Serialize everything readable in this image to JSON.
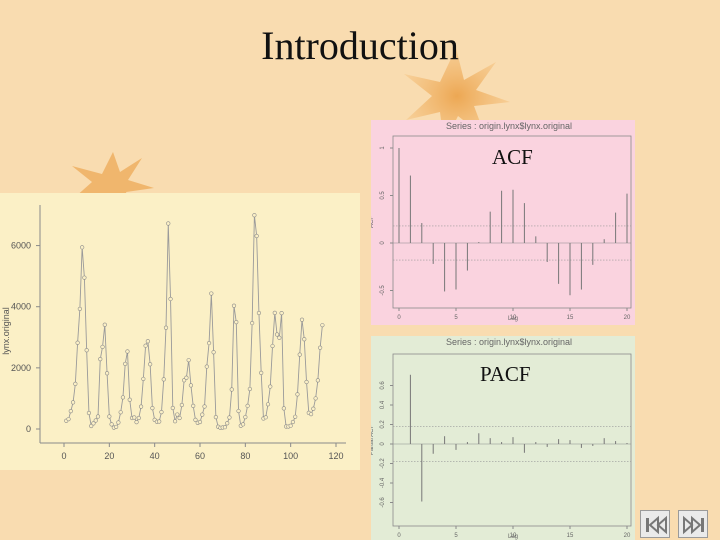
{
  "slide": {
    "title": "Introduction"
  },
  "labels": {
    "acf": "ACF",
    "pacf": "PACF"
  },
  "nav": {
    "prev_icon": "skip-back-icon",
    "next_icon": "skip-forward-icon"
  },
  "colors": {
    "background": "#f9dcb0",
    "ts_panel": "#fbf0c6",
    "acf_panel": "#fad3df",
    "pacf_panel": "#e3ecd6",
    "ink": "#8a8a8a"
  },
  "chart_data": [
    {
      "type": "line",
      "title": "",
      "xlabel": "",
      "ylabel": "lynx.original",
      "xlim": [
        0,
        120
      ],
      "ylim": [
        0,
        7000
      ],
      "xticks": [
        0,
        20,
        40,
        60,
        80,
        100,
        120
      ],
      "yticks": [
        0,
        2000,
        4000,
        6000
      ],
      "series": [
        {
          "values": [
            269,
            321,
            585,
            871,
            1475,
            2821,
            3928,
            5943,
            4950,
            2577,
            523,
            98,
            184,
            279,
            409,
            2285,
            2685,
            3409,
            1824,
            409,
            151,
            45,
            68,
            213,
            546,
            1033,
            2129,
            2536,
            957,
            361,
            377,
            225,
            360,
            731,
            1638,
            2725,
            2871,
            2119,
            684,
            299,
            236,
            245,
            552,
            1623,
            3311,
            6721,
            4254,
            687,
            255,
            473,
            358,
            784,
            1594,
            1676,
            2251,
            1426,
            756,
            299,
            201,
            229,
            469,
            736,
            2042,
            2811,
            4431,
            2511,
            389,
            73,
            39,
            49,
            59,
            188,
            377,
            1292,
            4031,
            3495,
            587,
            105,
            153,
            387,
            758,
            1307,
            3465,
            6991,
            6313,
            3794,
            1836,
            345,
            382,
            808,
            1388,
            2713,
            3800,
            3091,
            2985,
            3790,
            674,
            81,
            80,
            108,
            229,
            399,
            1132,
            2432,
            3574,
            2935,
            1537,
            529,
            485,
            662,
            1000,
            1590,
            2657,
            3396
          ]
        }
      ]
    },
    {
      "type": "bar",
      "title": "Series : origin.lynx$lynx.original",
      "xlabel": "Lag",
      "ylabel": "ACF",
      "xlim": [
        0,
        20
      ],
      "ylim": [
        -0.6,
        1.0
      ],
      "xticks": [
        0,
        5,
        10,
        15,
        20
      ],
      "yticks": [
        -0.5,
        0.0,
        0.5,
        1.0
      ],
      "lags": [
        0,
        1,
        2,
        3,
        4,
        5,
        6,
        7,
        8,
        9,
        10,
        11,
        12,
        13,
        14,
        15,
        16,
        17,
        18,
        19,
        20
      ],
      "values": [
        1.0,
        0.71,
        0.21,
        -0.22,
        -0.51,
        -0.49,
        -0.29,
        0.01,
        0.33,
        0.55,
        0.56,
        0.42,
        0.07,
        -0.2,
        -0.43,
        -0.55,
        -0.49,
        -0.23,
        0.04,
        0.32,
        0.52
      ],
      "confidence_band": 0.18
    },
    {
      "type": "bar",
      "title": "Series : origin.lynx$lynx.original",
      "xlabel": "Lag",
      "ylabel": "Partial ACF",
      "xlim": [
        0,
        20
      ],
      "ylim": [
        -0.8,
        0.8
      ],
      "xticks": [
        0,
        5,
        10,
        15,
        20
      ],
      "yticks": [
        -0.6,
        -0.4,
        -0.2,
        0.0,
        0.2,
        0.4,
        0.6
      ],
      "lags": [
        1,
        2,
        3,
        4,
        5,
        6,
        7,
        8,
        9,
        10,
        11,
        12,
        13,
        14,
        15,
        16,
        17,
        18,
        19,
        20
      ],
      "values": [
        0.71,
        -0.59,
        -0.1,
        0.08,
        -0.06,
        0.02,
        0.11,
        0.06,
        0.02,
        0.07,
        -0.09,
        0.02,
        -0.03,
        0.05,
        0.04,
        -0.04,
        -0.02,
        0.06,
        0.03,
        0.01
      ],
      "confidence_band": 0.18
    }
  ]
}
